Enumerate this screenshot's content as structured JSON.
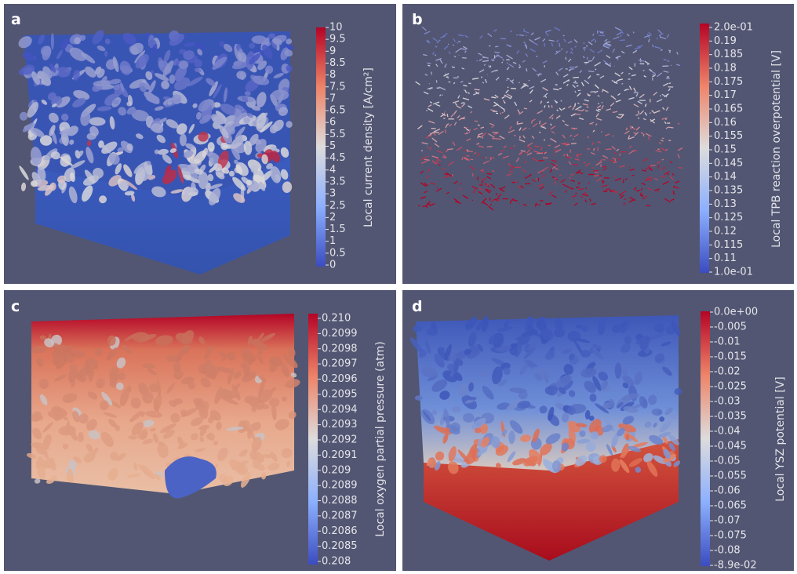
{
  "panels": [
    {
      "label": "a",
      "colorbar": {
        "title": "Local current density [A/cm²]",
        "ticks": [
          "10",
          "9.5",
          "9",
          "8.5",
          "8",
          "7.5",
          "7",
          "6.5",
          "6",
          "5.5",
          "5",
          "4.5",
          "4",
          "3.5",
          "3",
          "2.5",
          "2",
          "1.5",
          "1",
          "0.5",
          "0"
        ]
      }
    },
    {
      "label": "b",
      "colorbar": {
        "title": "Local TPB reaction overpotential [V]",
        "ticks": [
          "2.0e-01",
          "0.19",
          "0.185",
          "0.18",
          "0.175",
          "0.17",
          "0.165",
          "0.16",
          "0.155",
          "0.15",
          "0.145",
          "0.14",
          "0.135",
          "0.13",
          "0.125",
          "0.12",
          "0.115",
          "0.11",
          "1.0e-01"
        ]
      }
    },
    {
      "label": "c",
      "colorbar": {
        "title": "Local oxygen partial pressure (atm)",
        "ticks": [
          "0.210",
          "0.2099",
          "0.2098",
          "0.2097",
          "0.2096",
          "0.2095",
          "0.2094",
          "0.2093",
          "0.2092",
          "0.2091",
          "0.209",
          "0.2089",
          "0.2088",
          "0.2087",
          "0.2086",
          "0.2085",
          "0.208"
        ]
      }
    },
    {
      "label": "d",
      "colorbar": {
        "title": "Local YSZ potential [V]",
        "ticks": [
          "0.0e+00",
          "-0.005",
          "-0.01",
          "-0.015",
          "-0.02",
          "-0.025",
          "-0.03",
          "-0.035",
          "-0.04",
          "-0.045",
          "-0.05",
          "-0.055",
          "-0.06",
          "-0.065",
          "-0.07",
          "-0.075",
          "-0.08",
          "-8.9e-02"
        ]
      }
    }
  ]
}
